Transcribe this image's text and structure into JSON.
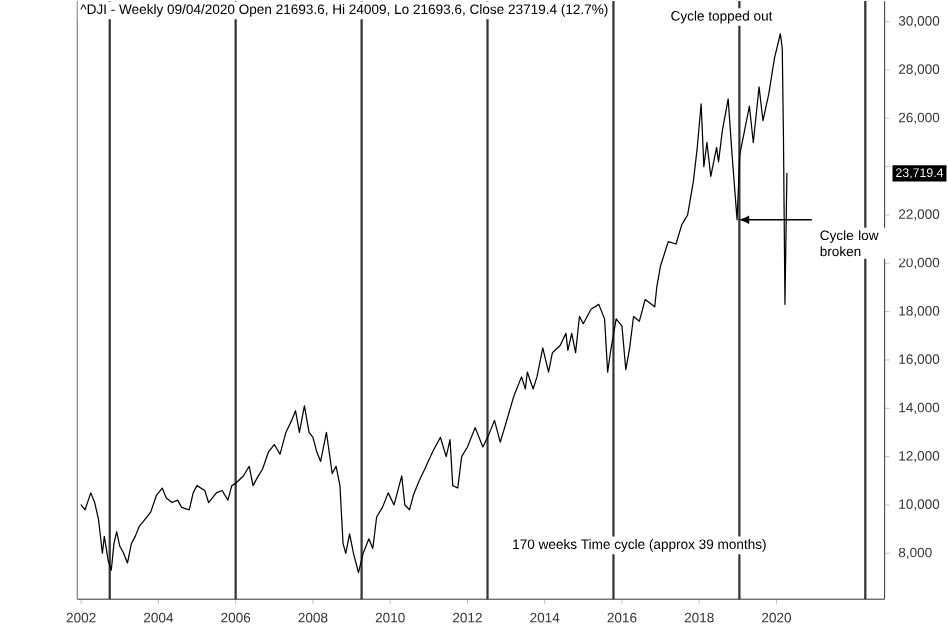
{
  "chart_data": {
    "type": "line",
    "title": "^DJI - Weekly 09/04/2020 Open 21693.6, Hi 24009, Lo 21693.6, Close 23719.4 (12.7%)",
    "xlim": [
      2001.9,
      2022.8
    ],
    "ylim": [
      6100,
      30850
    ],
    "xticks": [
      2002,
      2004,
      2006,
      2008,
      2010,
      2012,
      2014,
      2016,
      2018,
      2020
    ],
    "yticks": [
      {
        "value": 8000,
        "label": "8,000"
      },
      {
        "value": 10000,
        "label": "10,000"
      },
      {
        "value": 12000,
        "label": "12,000"
      },
      {
        "value": 14000,
        "label": "14,000"
      },
      {
        "value": 16000,
        "label": "16,000"
      },
      {
        "value": 18000,
        "label": "18,000"
      },
      {
        "value": 20000,
        "label": "20,000"
      },
      {
        "value": 22000,
        "label": "22,000"
      },
      {
        "value": 24000,
        "label": null
      },
      {
        "value": 26000,
        "label": "26,000"
      },
      {
        "value": 28000,
        "label": "28,000"
      },
      {
        "value": 30000,
        "label": "30,000"
      }
    ],
    "series": [
      {
        "color": "#000000",
        "x": [
          2002.0,
          2002.1,
          2002.25,
          2002.35,
          2002.45,
          2002.55,
          2002.6,
          2002.7,
          2002.78,
          2002.85,
          2002.92,
          2003.0,
          2003.1,
          2003.2,
          2003.3,
          2003.4,
          2003.5,
          2003.6,
          2003.7,
          2003.8,
          2003.95,
          2004.1,
          2004.2,
          2004.35,
          2004.5,
          2004.6,
          2004.8,
          2004.9,
          2005.0,
          2005.2,
          2005.3,
          2005.5,
          2005.65,
          2005.8,
          2005.9,
          2006.0,
          2006.2,
          2006.35,
          2006.45,
          2006.55,
          2006.7,
          2006.85,
          2007.0,
          2007.15,
          2007.3,
          2007.45,
          2007.55,
          2007.65,
          2007.78,
          2007.9,
          2008.0,
          2008.1,
          2008.2,
          2008.35,
          2008.5,
          2008.6,
          2008.7,
          2008.78,
          2008.85,
          2008.95,
          2009.05,
          2009.18,
          2009.3,
          2009.45,
          2009.55,
          2009.65,
          2009.8,
          2009.95,
          2010.1,
          2010.3,
          2010.38,
          2010.5,
          2010.6,
          2010.75,
          2010.9,
          2011.1,
          2011.3,
          2011.45,
          2011.55,
          2011.62,
          2011.75,
          2011.85,
          2012.0,
          2012.2,
          2012.4,
          2012.55,
          2012.7,
          2012.85,
          2013.0,
          2013.2,
          2013.4,
          2013.5,
          2013.55,
          2013.7,
          2013.8,
          2013.95,
          2014.1,
          2014.2,
          2014.4,
          2014.55,
          2014.6,
          2014.7,
          2014.8,
          2014.9,
          2015.0,
          2015.2,
          2015.4,
          2015.55,
          2015.63,
          2015.7,
          2015.85,
          2016.0,
          2016.1,
          2016.2,
          2016.3,
          2016.45,
          2016.6,
          2016.85,
          2016.9,
          2017.0,
          2017.2,
          2017.4,
          2017.55,
          2017.7,
          2017.85,
          2017.95,
          2018.05,
          2018.12,
          2018.2,
          2018.3,
          2018.45,
          2018.5,
          2018.6,
          2018.75,
          2018.85,
          2018.98,
          2019.05,
          2019.3,
          2019.4,
          2019.55,
          2019.65,
          2019.8,
          2019.95,
          2020.1,
          2020.15,
          2020.18,
          2020.22,
          2020.27
        ],
        "values": [
          10000,
          9800,
          10500,
          10100,
          9400,
          8000,
          8700,
          7700,
          7300,
          8400,
          8900,
          8300,
          8000,
          7600,
          8400,
          8700,
          9100,
          9300,
          9500,
          9700,
          10400,
          10700,
          10300,
          10100,
          10200,
          9900,
          9800,
          10500,
          10800,
          10600,
          10100,
          10500,
          10600,
          10200,
          10800,
          10900,
          11200,
          11600,
          10800,
          11100,
          11500,
          12200,
          12500,
          12100,
          13000,
          13500,
          13900,
          13000,
          14100,
          13000,
          12800,
          12200,
          11800,
          13000,
          11300,
          11600,
          10800,
          8400,
          8000,
          8800,
          8000,
          7200,
          8000,
          8600,
          8200,
          9500,
          9900,
          10500,
          10000,
          11200,
          10000,
          9800,
          10400,
          11000,
          11500,
          12200,
          12800,
          12000,
          12700,
          10800,
          10700,
          12000,
          12400,
          13200,
          12400,
          12900,
          13500,
          12600,
          13400,
          14500,
          15300,
          14800,
          15500,
          14800,
          15300,
          16500,
          15500,
          16300,
          16600,
          17100,
          16400,
          17100,
          16300,
          17800,
          17500,
          18100,
          18300,
          17700,
          15500,
          16300,
          17700,
          17400,
          15600,
          16500,
          17800,
          17600,
          18500,
          18200,
          19000,
          19900,
          20900,
          20800,
          21600,
          22000,
          23400,
          24800,
          26600,
          24000,
          25000,
          23600,
          24800,
          24200,
          25500,
          26800,
          24500,
          21800,
          24500,
          26500,
          25000,
          27300,
          25900,
          27000,
          28500,
          29500,
          28900,
          25400,
          18300,
          23719.4
        ]
      }
    ],
    "ref_lines": [
      {
        "axis": "x",
        "value": 2002.74,
        "color": "#333333"
      },
      {
        "axis": "x",
        "value": 2006.0,
        "color": "#333333"
      },
      {
        "axis": "x",
        "value": 2009.26,
        "color": "#333333"
      },
      {
        "axis": "x",
        "value": 2012.52,
        "color": "#333333"
      },
      {
        "axis": "x",
        "value": 2015.78,
        "color": "#333333"
      },
      {
        "axis": "x",
        "value": 2019.04,
        "color": "#333333"
      },
      {
        "axis": "x",
        "value": 2022.3,
        "color": "#333333"
      }
    ],
    "annotations": [
      "170 weeks Time cycle (approx 39 months)",
      {
        "text": "Cycle topped out",
        "x": 2020.1,
        "y": 29500
      },
      {
        "text": "Cycle low broken",
        "x": 2019.0,
        "y": 21800
      },
      "23,719.4"
    ]
  }
}
